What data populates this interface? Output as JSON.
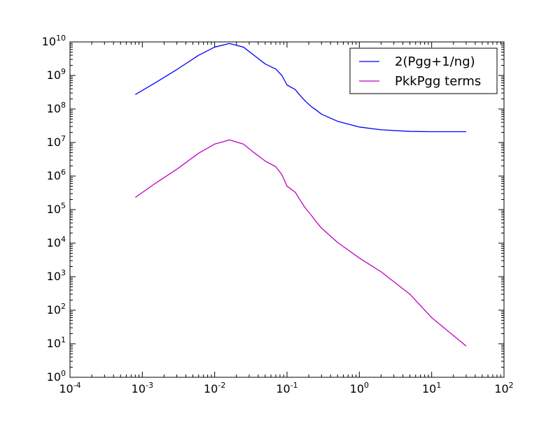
{
  "chart_data": {
    "type": "line",
    "title": "",
    "xlabel": "",
    "ylabel": "",
    "xscale": "log",
    "yscale": "log",
    "xlim": [
      0.0001,
      100
    ],
    "ylim": [
      1,
      10000000000
    ],
    "grid": false,
    "legend_position": "top-right",
    "x_ticks": [
      {
        "base": "10",
        "exp": "-4"
      },
      {
        "base": "10",
        "exp": "-3"
      },
      {
        "base": "10",
        "exp": "-2"
      },
      {
        "base": "10",
        "exp": "-1"
      },
      {
        "base": "10",
        "exp": "0"
      },
      {
        "base": "10",
        "exp": "1"
      },
      {
        "base": "10",
        "exp": "2"
      }
    ],
    "y_ticks": [
      {
        "base": "10",
        "exp": "0"
      },
      {
        "base": "10",
        "exp": "1"
      },
      {
        "base": "10",
        "exp": "2"
      },
      {
        "base": "10",
        "exp": "3"
      },
      {
        "base": "10",
        "exp": "4"
      },
      {
        "base": "10",
        "exp": "5"
      },
      {
        "base": "10",
        "exp": "6"
      },
      {
        "base": "10",
        "exp": "7"
      },
      {
        "base": "10",
        "exp": "8"
      },
      {
        "base": "10",
        "exp": "9"
      },
      {
        "base": "10",
        "exp": "10"
      }
    ],
    "x": [
      0.0008,
      0.0015,
      0.003,
      0.006,
      0.01,
      0.016,
      0.025,
      0.035,
      0.05,
      0.07,
      0.085,
      0.1,
      0.13,
      0.15,
      0.18,
      0.22,
      0.25,
      0.3,
      0.5,
      1,
      2,
      5,
      10,
      30
    ],
    "series": [
      {
        "name": "2(Pgg+1/ng)",
        "color": "#0000ff",
        "values": [
          270000000,
          600000000,
          1500000000,
          4000000000,
          7000000000,
          9000000000,
          7000000000,
          4000000000,
          2200000000,
          1550000000,
          1000000000,
          520000000,
          380000000,
          260000000,
          170000000,
          115000000,
          95000000,
          70000000,
          43000000,
          29000000,
          24000000,
          21500000,
          21000000,
          21000000
        ]
      },
      {
        "name": "PkkPgg terms",
        "color": "#bf00bf",
        "values": [
          230000,
          600000,
          1600000,
          4800000,
          9000000,
          12000000,
          9000000,
          5000000,
          2800000,
          1900000,
          1100000,
          500000,
          330000,
          200000,
          110000,
          65000,
          45000,
          28000,
          10500,
          3600,
          1400,
          300,
          60,
          8.5
        ]
      }
    ]
  }
}
